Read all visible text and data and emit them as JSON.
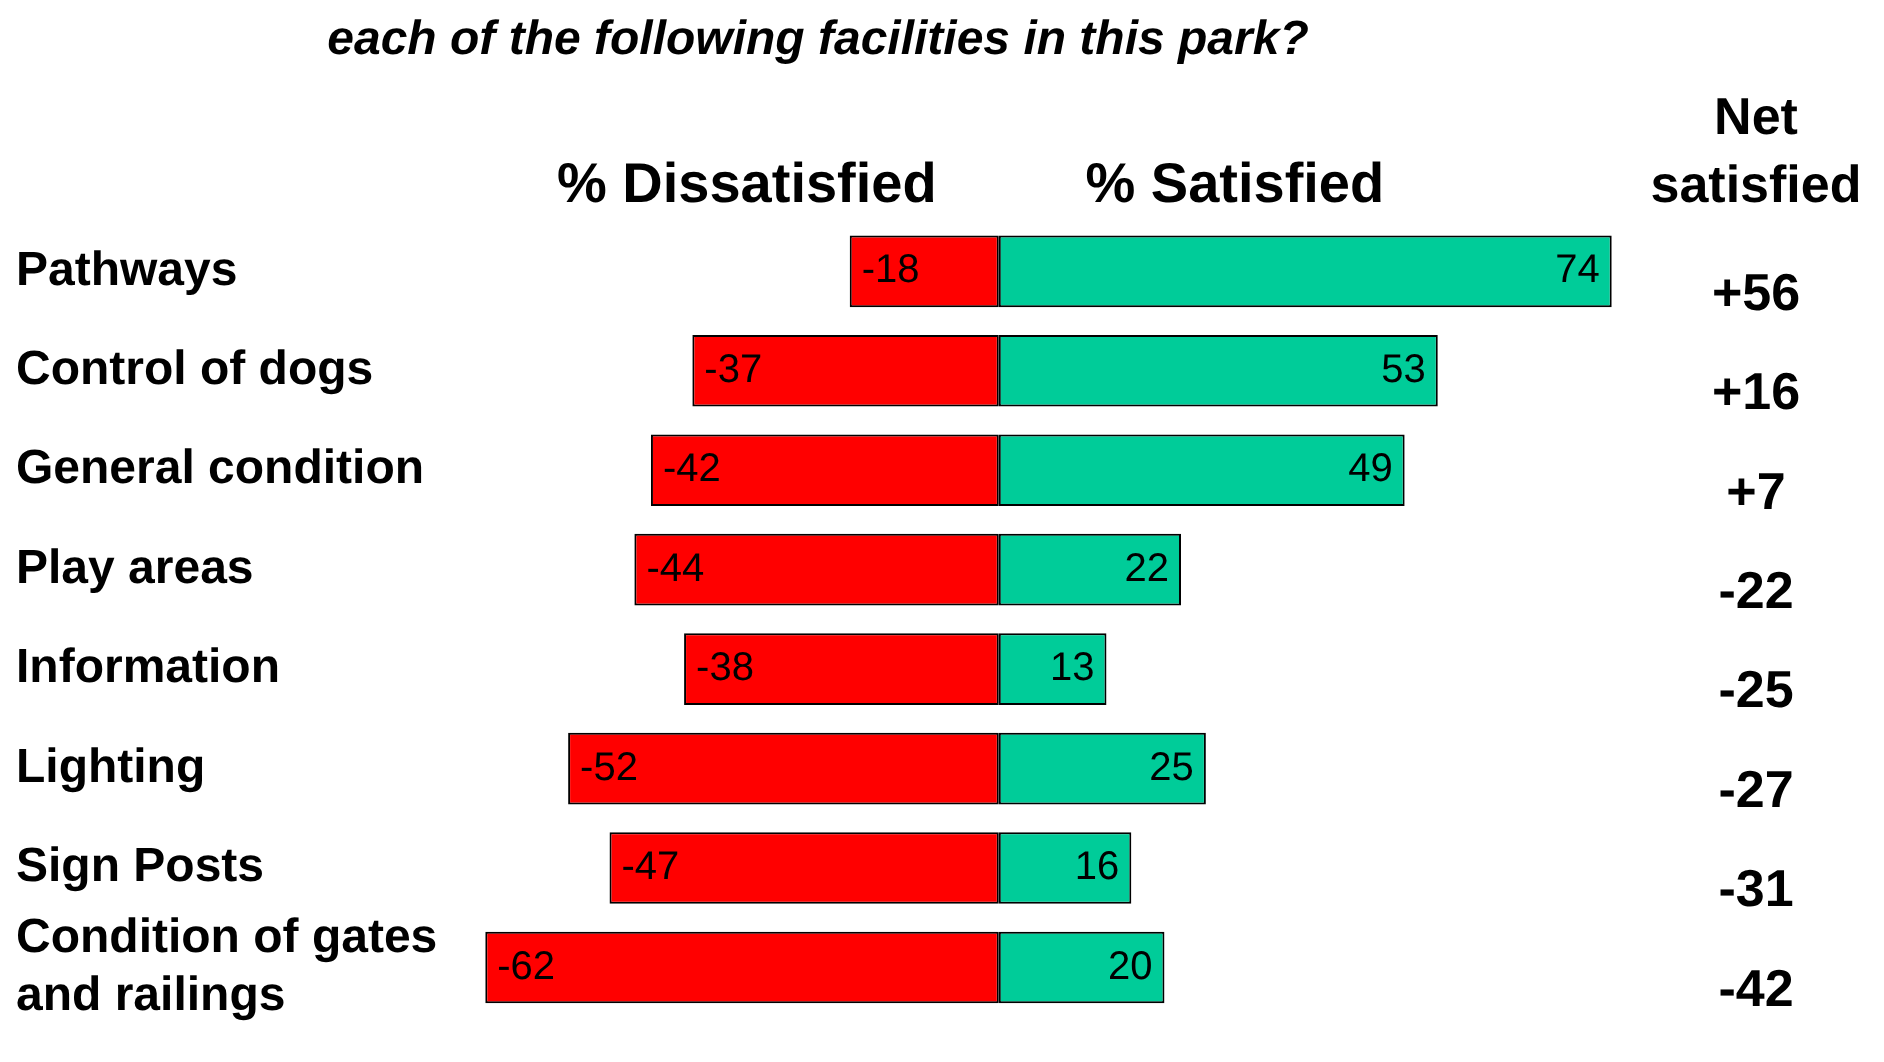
{
  "chart_data": {
    "type": "bar",
    "orientation": "horizontal",
    "stacked": true,
    "title": "each of the following facilities in this park?",
    "categories": [
      "Pathways",
      "Control of dogs",
      "General condition",
      "Play areas",
      "Information",
      "Lighting",
      "Sign Posts",
      "Condition of gates and railings"
    ],
    "series": [
      {
        "name": "% Dissatisfied",
        "color": "#ff0000",
        "values": [
          -18,
          -37,
          -42,
          -44,
          -38,
          -52,
          -47,
          -62
        ]
      },
      {
        "name": "% Satisfied",
        "color": "#00cc99",
        "values": [
          74,
          53,
          49,
          22,
          13,
          25,
          16,
          20
        ]
      }
    ],
    "xlim": [
      -62,
      75
    ],
    "data_labels": true,
    "legend": "top",
    "tick_labels": "y",
    "annotations": [
      "Net satisfied",
      "+56",
      "+16",
      "+7",
      "-22",
      "-25",
      "-27",
      "-31",
      "-42"
    ]
  }
}
